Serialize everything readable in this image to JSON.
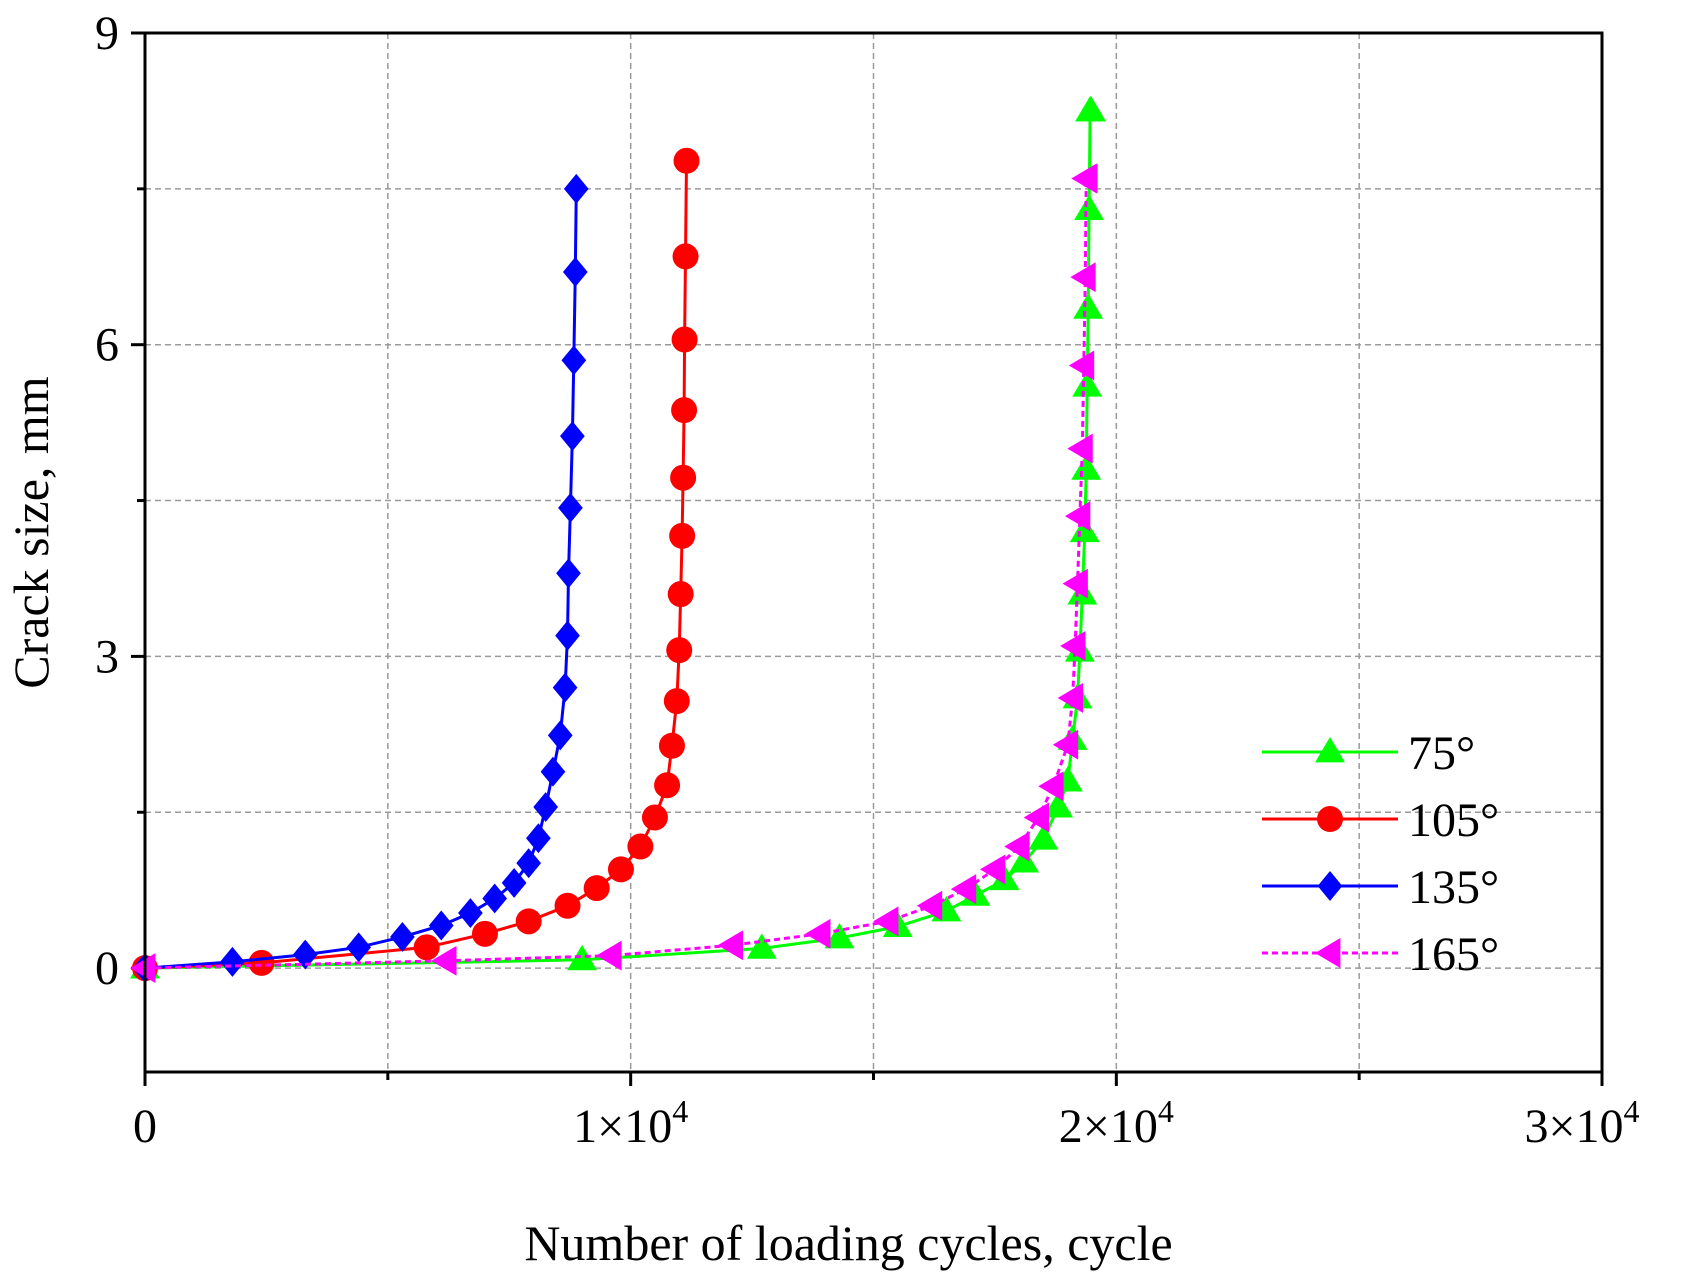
{
  "chart_data": {
    "type": "line",
    "xlabel": "Number of loading cycles, cycle",
    "ylabel": "Crack size, mm",
    "xlim": [
      0,
      30000
    ],
    "ylim": [
      -1,
      9
    ],
    "x_ticks": [
      {
        "value": 0,
        "mant": "0",
        "exp": ""
      },
      {
        "value": 10000,
        "mant": "1×10",
        "exp": "4"
      },
      {
        "value": 20000,
        "mant": "2×10",
        "exp": "4"
      },
      {
        "value": 30000,
        "mant": "3×10",
        "exp": "4"
      }
    ],
    "y_ticks": [
      0,
      3,
      6,
      9
    ],
    "grid": true,
    "legend_position": "right",
    "series": [
      {
        "name": "75°",
        "color": "#00ff00",
        "marker": "triangle-up",
        "dash": "none",
        "x": [
          0,
          9000,
          12700,
          14300,
          15500,
          16500,
          17100,
          17700,
          18100,
          18500,
          18800,
          19000,
          19100,
          19200,
          19250,
          19300,
          19350,
          19380,
          19400,
          19420,
          19440,
          19460,
          19480
        ],
        "y": [
          0,
          0.08,
          0.19,
          0.29,
          0.4,
          0.55,
          0.7,
          0.85,
          1.02,
          1.24,
          1.55,
          1.8,
          2.2,
          2.6,
          3.05,
          3.6,
          4.2,
          4.8,
          5.6,
          6.35,
          7.3,
          8.25,
          8.25
        ]
      },
      {
        "name": "105°",
        "color": "#ff0000",
        "marker": "circle",
        "dash": "none",
        "x": [
          0,
          2400,
          5800,
          7000,
          7900,
          8700,
          9300,
          9800,
          10200,
          10500,
          10750,
          10850,
          10950,
          11000,
          11030,
          11060,
          11080,
          11100,
          11110,
          11130,
          11150
        ],
        "y": [
          0,
          0.05,
          0.2,
          0.33,
          0.45,
          0.6,
          0.77,
          0.95,
          1.17,
          1.45,
          1.76,
          2.14,
          2.57,
          3.06,
          3.6,
          4.16,
          4.72,
          5.37,
          6.05,
          6.85,
          7.77
        ]
      },
      {
        "name": "135°",
        "color": "#0000ff",
        "marker": "diamond",
        "dash": "none",
        "x": [
          0,
          1800,
          3300,
          4400,
          5300,
          6100,
          6700,
          7200,
          7600,
          7900,
          8100,
          8250,
          8400,
          8550,
          8650,
          8700,
          8720,
          8760,
          8800,
          8830,
          8860,
          8880
        ],
        "y": [
          0,
          0.06,
          0.13,
          0.2,
          0.3,
          0.41,
          0.53,
          0.67,
          0.82,
          1.01,
          1.25,
          1.55,
          1.89,
          2.24,
          2.7,
          3.2,
          3.8,
          4.43,
          5.12,
          5.85,
          6.7,
          7.5
        ]
      },
      {
        "name": "165°",
        "color": "#ff00ff",
        "marker": "triangle-left",
        "dash": "6,4",
        "x": [
          0,
          6200,
          9600,
          12100,
          13900,
          15300,
          16200,
          16900,
          17500,
          18000,
          18400,
          18700,
          19000,
          19100,
          19150,
          19200,
          19250,
          19300,
          19330,
          19360,
          19380,
          19400
        ],
        "y": [
          0,
          0.07,
          0.12,
          0.22,
          0.33,
          0.45,
          0.6,
          0.76,
          0.95,
          1.17,
          1.45,
          1.75,
          2.15,
          2.6,
          3.1,
          3.7,
          4.35,
          5.0,
          5.8,
          6.65,
          7.6,
          7.6
        ]
      }
    ]
  }
}
